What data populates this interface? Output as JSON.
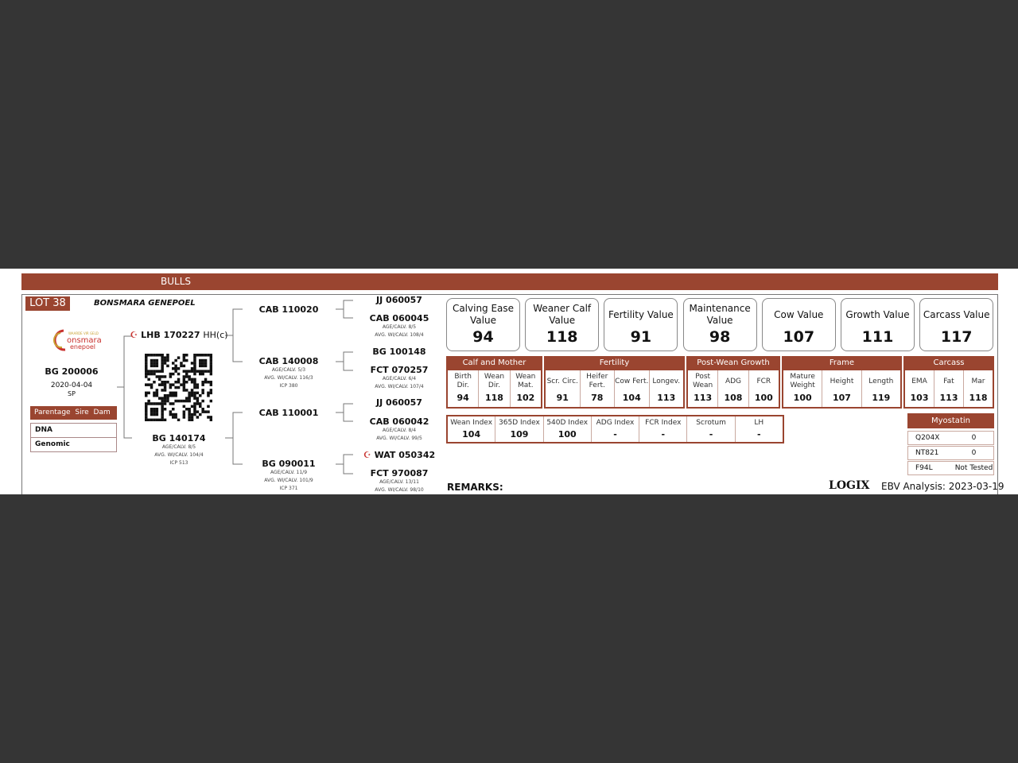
{
  "header": {
    "title": "BULLS"
  },
  "lot": "LOT 38",
  "breeder": "BONSMARA GENEPOEL",
  "logo": {
    "text": "Bonsmara Genepoel",
    "tagline": "WAARDE VIR GELD"
  },
  "animal": {
    "id": "BG 200006",
    "dob": "2020-04-04",
    "code": "SP"
  },
  "parentage": {
    "header": "Parentage  Sire  Dam",
    "rows": [
      "DNA",
      "Genomic"
    ]
  },
  "sire": {
    "id": "LHB 170227",
    "suffix": "HH(c)"
  },
  "dam": {
    "id": "BG 140174",
    "l1": "AGE/CALV. 8/5",
    "l2": "AVG. WI/CALV. 104/4",
    "l3": "ICP 513"
  },
  "gen2": [
    {
      "id": "CAB 110020"
    },
    {
      "id": "CAB 140008",
      "l1": "AGE/CALV. 5/3",
      "l2": "AVG. WI/CALV. 116/3",
      "l3": "ICP 380"
    },
    {
      "id": "CAB 110001"
    },
    {
      "id": "BG 090011",
      "l1": "AGE/CALV. 11/9",
      "l2": "AVG. WI/CALV. 101/9",
      "l3": "ICP 371"
    }
  ],
  "gen3": [
    {
      "id": "JJ 060057"
    },
    {
      "id": "CAB 060045",
      "l1": "AGE/CALV. 8/5",
      "l2": "AVG. WI/CALV. 108/4"
    },
    {
      "id": "BG 100148"
    },
    {
      "id": "FCT 070257",
      "l1": "AGE/CALV. 6/4",
      "l2": "AVG. WI/CALV. 107/4"
    },
    {
      "id": "JJ 060057"
    },
    {
      "id": "CAB 060042",
      "l1": "AGE/CALV. 8/4",
      "l2": "AVG. WI/CALV. 99/5"
    },
    {
      "id": "WAT 050342"
    },
    {
      "id": "FCT 970087",
      "l1": "AGE/CALV. 13/11",
      "l2": "AVG. WI/CALV. 98/10"
    }
  ],
  "summary": [
    {
      "label": "Calving Ease Value",
      "value": "94"
    },
    {
      "label": "Weaner Calf Value",
      "value": "118"
    },
    {
      "label": "Fertility Value",
      "value": "91"
    },
    {
      "label": "Maintenance Value",
      "value": "98"
    },
    {
      "label": "Cow Value",
      "value": "107"
    },
    {
      "label": "Growth Value",
      "value": "111"
    },
    {
      "label": "Carcass Value",
      "value": "117"
    }
  ],
  "groups": [
    {
      "name": "Calf and Mother",
      "cols": [
        {
          "l": "Birth Dir.",
          "v": "94"
        },
        {
          "l": "Wean Dir.",
          "v": "118"
        },
        {
          "l": "Wean Mat.",
          "v": "102"
        }
      ]
    },
    {
      "name": "Fertility",
      "cols": [
        {
          "l": "Scr. Circ.",
          "v": "91"
        },
        {
          "l": "Heifer Fert.",
          "v": "78"
        },
        {
          "l": "Cow Fert.",
          "v": "104"
        },
        {
          "l": "Longev.",
          "v": "113"
        }
      ]
    },
    {
      "name": "Post-Wean Growth",
      "cols": [
        {
          "l": "Post Wean",
          "v": "113"
        },
        {
          "l": "ADG",
          "v": "108"
        },
        {
          "l": "FCR",
          "v": "100"
        }
      ]
    },
    {
      "name": "Frame",
      "cols": [
        {
          "l": "Mature Weight",
          "v": "100"
        },
        {
          "l": "Height",
          "v": "107"
        },
        {
          "l": "Length",
          "v": "119"
        }
      ]
    },
    {
      "name": "Carcass",
      "cols": [
        {
          "l": "EMA",
          "v": "103"
        },
        {
          "l": "Fat",
          "v": "113"
        },
        {
          "l": "Mar",
          "v": "118"
        }
      ]
    }
  ],
  "indexes": [
    {
      "l": "Wean Index",
      "v": "104"
    },
    {
      "l": "365D Index",
      "v": "109"
    },
    {
      "l": "540D Index",
      "v": "100"
    },
    {
      "l": "ADG Index",
      "v": "-"
    },
    {
      "l": "FCR Index",
      "v": "-"
    },
    {
      "l": "Scrotum",
      "v": "-"
    },
    {
      "l": "LH",
      "v": "-"
    }
  ],
  "myostatin": {
    "title": "Myostatin",
    "rows": [
      {
        "k": "Q204X",
        "v": "0"
      },
      {
        "k": "NT821",
        "v": "0"
      },
      {
        "k": "F94L",
        "v": "Not Tested"
      }
    ]
  },
  "remarks": "REMARKS:",
  "footer": {
    "brand": "LOGIX",
    "ebv": "EBV Analysis: 2023-03-19"
  },
  "colors": {
    "accent": "#9a4530",
    "background": "#353535",
    "marker": "#c8322e"
  }
}
